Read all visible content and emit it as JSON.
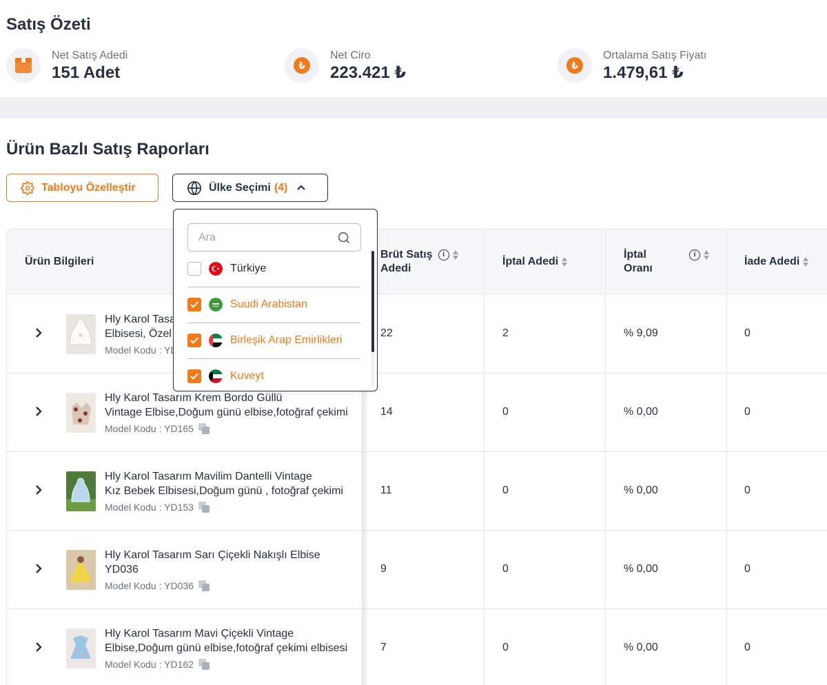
{
  "summary": {
    "title": "Satış Özeti",
    "stats": [
      {
        "label": "Net Satış Adedi",
        "value": "151 Adet",
        "icon": "box-icon"
      },
      {
        "label": "Net Ciro",
        "value": "223.421 ₺",
        "icon": "lira-coin-icon"
      },
      {
        "label": "Ortalama Satış Fiyatı",
        "value": "1.479,61 ₺",
        "icon": "lira-coin-icon"
      }
    ]
  },
  "report": {
    "title": "Ürün Bazlı Satış Raporları",
    "customize_button": "Tabloyu Özelleştir",
    "country_button": "Ülke Seçimi",
    "country_count": "(4)"
  },
  "dropdown": {
    "search_placeholder": "Ara",
    "options": [
      {
        "name": "Türkiye",
        "checked": false
      },
      {
        "name": "Suudi Arabistan",
        "checked": true
      },
      {
        "name": "Birleşik Arap Emirlikleri",
        "checked": true
      },
      {
        "name": "Kuveyt",
        "checked": true
      }
    ]
  },
  "table": {
    "headers": {
      "product": "Ürün Bilgileri",
      "gross_line1": "Brüt Satış",
      "gross_line2": "Adedi",
      "cancel": "İptal Adedi",
      "cancel_rate_line1": "İptal",
      "cancel_rate_line2": "Oranı",
      "return": "İade Adedi"
    },
    "rows": [
      {
        "name1": "Hly Karol Tasarım Beyaz Prenses Kız Bebek",
        "name2": "Elbisesi, Özel Gün Elbisesi",
        "code": "Model Kodu : YD170",
        "gross": "22",
        "cancel": "2",
        "rate": "% 9,09",
        "returns": "0"
      },
      {
        "name1": "Hly Karol Tasarım Krem Bordo Güllü",
        "name2": "Vintage Elbise,Doğum günü elbise,fotoğraf çekimi",
        "code": "Model Kodu : YD165",
        "gross": "14",
        "cancel": "0",
        "rate": "% 0,00",
        "returns": "0"
      },
      {
        "name1": "Hly Karol Tasarım Mavilim Dantelli Vintage",
        "name2": "Kız Bebek Elbisesi,Doğum günü , fotoğraf çekimi",
        "code": "Model Kodu : YD153",
        "gross": "11",
        "cancel": "0",
        "rate": "% 0,00",
        "returns": "0"
      },
      {
        "name1": "Hly Karol Tasarım Sarı Çiçekli Nakışlı Elbise",
        "name2": "YD036",
        "code": "Model Kodu : YD036",
        "gross": "9",
        "cancel": "0",
        "rate": "% 0,00",
        "returns": "0"
      },
      {
        "name1": "Hly Karol Tasarım Mavi Çiçekli Vintage",
        "name2": "Elbise,Doğum günü elbise,fotoğraf çekimi elbisesi",
        "code": "Model Kodu : YD162",
        "gross": "7",
        "cancel": "0",
        "rate": "% 0,00",
        "returns": "0"
      }
    ]
  },
  "colors": {
    "accent": "#f27a1a",
    "text": "#273142",
    "muted": "#6b7280",
    "border": "#e5e7eb"
  }
}
